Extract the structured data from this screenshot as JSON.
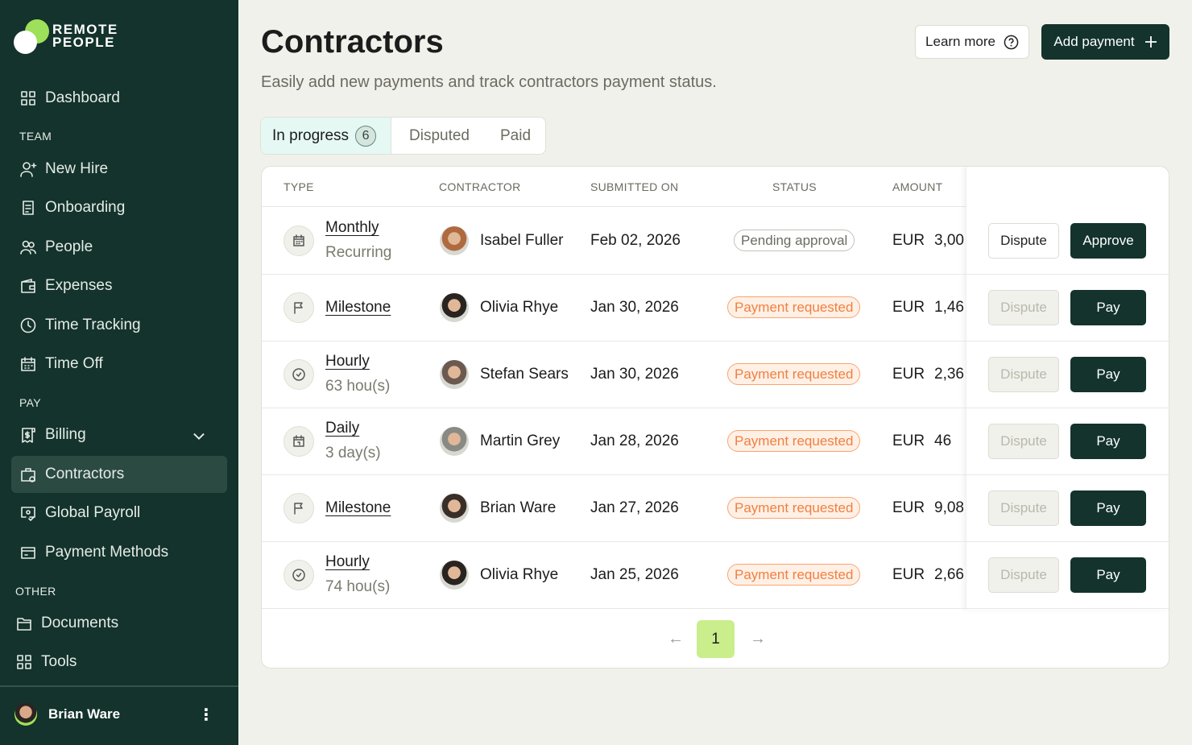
{
  "brand": {
    "line1": "REMOTE",
    "line2": "PEOPLE",
    "accent": "#9ee05a",
    "sidebar_bg": "#13332c"
  },
  "sidebar": {
    "dashboard": "Dashboard",
    "team_label": "TEAM",
    "team": [
      "New Hire",
      "Onboarding",
      "People",
      "Expenses",
      "Time Tracking",
      "Time Off"
    ],
    "pay_label": "PAY",
    "pay": [
      "Billing",
      "Contractors",
      "Global Payroll",
      "Payment Methods"
    ],
    "active": "Contractors",
    "other_label": "OTHER",
    "other": [
      "Documents",
      "Tools"
    ],
    "user": "Brian Ware"
  },
  "header": {
    "title": "Contractors",
    "subtitle": "Easily add new payments and track contractors payment status.",
    "learn_more": "Learn more",
    "add_payment": "Add payment"
  },
  "tabs": [
    {
      "label": "In progress",
      "count": "6"
    },
    {
      "label": "Disputed"
    },
    {
      "label": "Paid"
    }
  ],
  "table": {
    "columns": [
      "TYPE",
      "CONTRACTOR",
      "SUBMITTED ON",
      "STATUS",
      "AMOUNT"
    ],
    "rows": [
      {
        "type": "Monthly",
        "sub": "Recurring",
        "icon": "calendar-icon",
        "contractor": "Isabel Fuller",
        "date": "Feb 02, 2026",
        "status": "Pending approval",
        "currency": "EUR",
        "amount": "3,00",
        "dispute": "Dispute",
        "dispute_enabled": true,
        "action": "Approve"
      },
      {
        "type": "Milestone",
        "sub": "",
        "icon": "flag-icon",
        "contractor": "Olivia Rhye",
        "date": "Jan 30, 2026",
        "status": "Payment requested",
        "currency": "EUR",
        "amount": "1,46",
        "dispute": "Dispute",
        "dispute_enabled": false,
        "action": "Pay"
      },
      {
        "type": "Hourly",
        "sub": "63 hou(s)",
        "icon": "clock-icon",
        "contractor": "Stefan Sears",
        "date": "Jan 30, 2026",
        "status": "Payment requested",
        "currency": "EUR",
        "amount": "2,36",
        "dispute": "Dispute",
        "dispute_enabled": false,
        "action": "Pay"
      },
      {
        "type": "Daily",
        "sub": "3 day(s)",
        "icon": "calendar-day-icon",
        "contractor": "Martin Grey",
        "date": "Jan 28, 2026",
        "status": "Payment requested",
        "currency": "EUR",
        "amount": "46",
        "dispute": "Dispute",
        "dispute_enabled": false,
        "action": "Pay"
      },
      {
        "type": "Milestone",
        "sub": "",
        "icon": "flag-icon",
        "contractor": "Brian Ware",
        "date": "Jan 27, 2026",
        "status": "Payment requested",
        "currency": "EUR",
        "amount": "9,08",
        "dispute": "Dispute",
        "dispute_enabled": false,
        "action": "Pay"
      },
      {
        "type": "Hourly",
        "sub": "74 hou(s)",
        "icon": "clock-icon",
        "contractor": "Olivia Rhye",
        "date": "Jan 25, 2026",
        "status": "Payment requested",
        "currency": "EUR",
        "amount": "2,66",
        "dispute": "Dispute",
        "dispute_enabled": false,
        "action": "Pay"
      }
    ]
  },
  "pagination": {
    "current": "1",
    "prev": "←",
    "next": "→"
  }
}
